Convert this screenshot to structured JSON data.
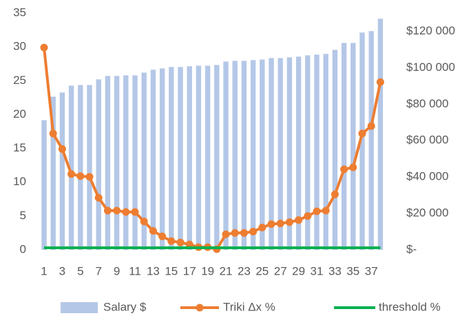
{
  "chart_data": {
    "type": "bar",
    "categories": [
      1,
      null,
      3,
      null,
      5,
      null,
      7,
      null,
      9,
      null,
      11,
      null,
      13,
      null,
      15,
      null,
      17,
      null,
      19,
      null,
      21,
      null,
      23,
      null,
      25,
      null,
      27,
      null,
      29,
      null,
      31,
      null,
      33,
      null,
      35,
      null,
      37,
      null
    ],
    "series": [
      {
        "name": "Salary $",
        "type": "bar",
        "axis": "y2",
        "color": "#b4c7e7",
        "values": [
          71200,
          84100,
          86400,
          90200,
          90500,
          90500,
          93600,
          95500,
          95500,
          95800,
          95800,
          97300,
          98900,
          99600,
          100400,
          100400,
          100800,
          101100,
          101100,
          101500,
          103400,
          103800,
          103800,
          104200,
          104500,
          105300,
          105300,
          105700,
          106100,
          106800,
          107200,
          107600,
          109800,
          113600,
          113600,
          119300,
          120100,
          126900
        ]
      },
      {
        "name": "Triki Δx %",
        "type": "line",
        "markers": true,
        "color": "#ed7d31",
        "values": [
          29.9,
          17.2,
          14.9,
          11.2,
          10.9,
          10.8,
          7.7,
          5.8,
          5.8,
          5.6,
          5.6,
          4.2,
          2.8,
          2.0,
          1.3,
          1.1,
          0.8,
          0.4,
          0.4,
          0.1,
          2.3,
          2.5,
          2.5,
          2.7,
          3.3,
          3.8,
          3.9,
          4.1,
          4.4,
          5.0,
          5.7,
          5.8,
          8.2,
          11.9,
          12.2,
          17.2,
          18.3,
          24.8
        ]
      },
      {
        "name": "threshold %",
        "type": "line",
        "markers": false,
        "color": "#00b050",
        "values": [
          0.3,
          0.3,
          0.3,
          0.3,
          0.3,
          0.3,
          0.3,
          0.3,
          0.3,
          0.3,
          0.3,
          0.3,
          0.3,
          0.3,
          0.3,
          0.3,
          0.3,
          0.3,
          0.3,
          0.3,
          0.3,
          0.3,
          0.3,
          0.3,
          0.3,
          0.3,
          0.3,
          0.3,
          0.3,
          0.3,
          0.3,
          0.3,
          0.3,
          0.3,
          0.3,
          0.3,
          0.3,
          0.3
        ]
      }
    ],
    "ylim": [
      0,
      35
    ],
    "yticks": [
      0,
      5,
      10,
      15,
      20,
      25,
      30,
      35
    ],
    "y2lim": [
      0,
      130000
    ],
    "y2ticks": [
      {
        "value": 0,
        "label": "$-"
      },
      {
        "value": 20000,
        "label": "$20 000"
      },
      {
        "value": 40000,
        "label": "$40 000"
      },
      {
        "value": 60000,
        "label": "$60 000"
      },
      {
        "value": 80000,
        "label": "$80 000"
      },
      {
        "value": 100000,
        "label": "$100 000"
      },
      {
        "value": 120000,
        "label": "$120 000"
      }
    ],
    "legend": "bottom"
  }
}
